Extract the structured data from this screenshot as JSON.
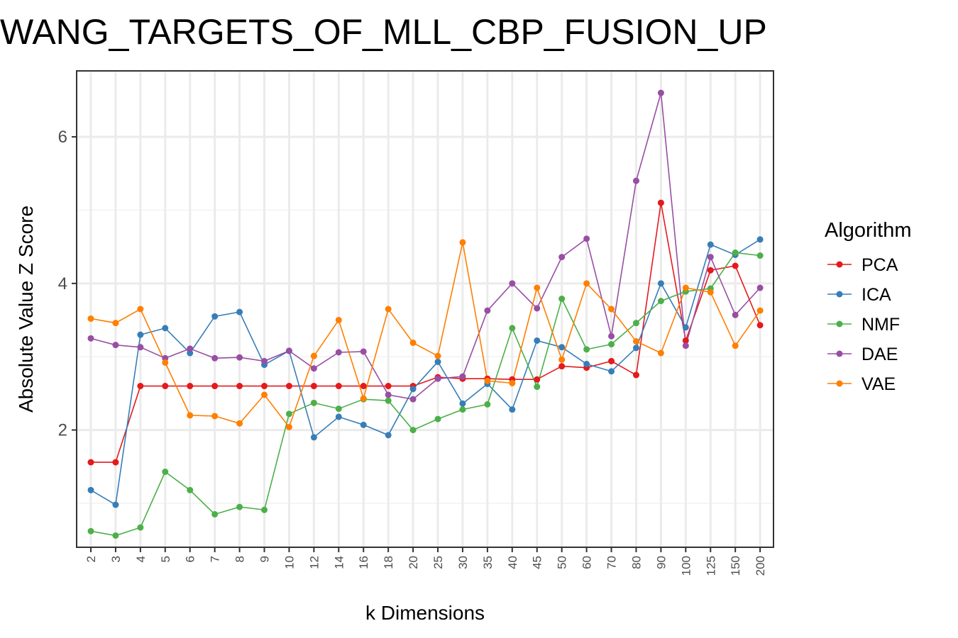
{
  "chart_data": {
    "type": "line",
    "title": "WANG_TARGETS_OF_MLL_CBP_FUSION_UP",
    "xlabel": "k Dimensions",
    "ylabel": "Absolute Value Z Score",
    "categories": [
      "2",
      "3",
      "4",
      "5",
      "6",
      "7",
      "8",
      "9",
      "10",
      "12",
      "14",
      "16",
      "18",
      "20",
      "25",
      "30",
      "35",
      "40",
      "45",
      "50",
      "60",
      "70",
      "80",
      "90",
      "100",
      "125",
      "150",
      "200"
    ],
    "yticks": [
      "2",
      "4",
      "6"
    ],
    "ylim": [
      0.4,
      6.9
    ],
    "grid": true,
    "legend": {
      "title": "Algorithm",
      "position": "right"
    },
    "series": [
      {
        "name": "PCA",
        "color": "#E41A1C",
        "values": [
          1.56,
          1.56,
          2.6,
          2.6,
          2.6,
          2.6,
          2.6,
          2.6,
          2.6,
          2.6,
          2.6,
          2.6,
          2.6,
          2.6,
          2.72,
          2.7,
          2.7,
          2.69,
          2.69,
          2.87,
          2.85,
          2.94,
          2.75,
          5.1,
          3.22,
          4.18,
          4.24,
          3.43
        ]
      },
      {
        "name": "ICA",
        "color": "#377EB8",
        "values": [
          1.18,
          0.98,
          3.3,
          3.39,
          3.05,
          3.55,
          3.61,
          2.89,
          3.08,
          1.9,
          2.18,
          2.07,
          1.93,
          2.56,
          2.93,
          2.36,
          2.63,
          2.28,
          3.22,
          3.13,
          2.9,
          2.8,
          3.12,
          4.0,
          3.4,
          4.53,
          4.39,
          4.6
        ]
      },
      {
        "name": "NMF",
        "color": "#4DAF4A",
        "values": [
          0.62,
          0.56,
          0.67,
          1.43,
          1.18,
          0.85,
          0.95,
          0.91,
          2.22,
          2.37,
          2.29,
          2.42,
          2.4,
          2.0,
          2.15,
          2.28,
          2.35,
          3.39,
          2.59,
          3.79,
          3.1,
          3.17,
          3.46,
          3.76,
          3.89,
          3.93,
          4.42,
          4.38
        ]
      },
      {
        "name": "DAE",
        "color": "#984EA3",
        "values": [
          3.25,
          3.16,
          3.13,
          2.98,
          3.11,
          2.98,
          2.99,
          2.94,
          3.08,
          2.84,
          3.06,
          3.07,
          2.48,
          2.42,
          2.7,
          2.73,
          3.63,
          4.0,
          3.66,
          4.36,
          4.61,
          3.28,
          5.4,
          6.6,
          3.15,
          4.36,
          3.57,
          3.94
        ]
      },
      {
        "name": "VAE",
        "color": "#FF7F00",
        "values": [
          3.52,
          3.46,
          3.65,
          2.92,
          2.2,
          2.19,
          2.09,
          2.48,
          2.04,
          3.01,
          3.5,
          2.43,
          3.65,
          3.19,
          3.01,
          4.56,
          2.67,
          2.64,
          3.94,
          2.96,
          4.0,
          3.65,
          3.21,
          3.05,
          3.94,
          3.88,
          3.15,
          3.63
        ]
      }
    ]
  }
}
